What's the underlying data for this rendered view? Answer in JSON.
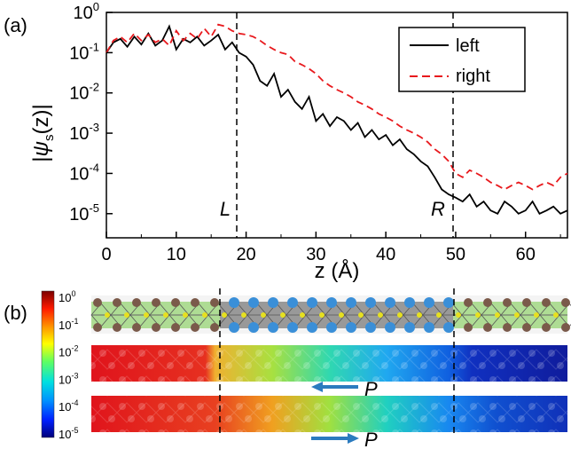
{
  "panel_a": {
    "tag": "(a)",
    "chart_data": {
      "type": "line",
      "xlabel": "z (Å)",
      "ylabel": "|ψs(z)|",
      "xlim": [
        0,
        66
      ],
      "ylim_log10": [
        -5.6,
        0
      ],
      "y_scale": "log",
      "x_ticks": [
        "0",
        "10",
        "20",
        "30",
        "40",
        "50",
        "60"
      ],
      "y_ticks": [
        "10^0",
        "10^-1",
        "10^-2",
        "10^-3",
        "10^-4",
        "10^-5"
      ],
      "legend_position": "top-right",
      "annotations": [
        {
          "text": "L",
          "x": 19
        },
        {
          "text": "R",
          "x": 50
        }
      ],
      "series": [
        {
          "name": "left",
          "style": "solid",
          "color": "#000000",
          "x": [
            0,
            1,
            2,
            3,
            4,
            5,
            6,
            7,
            8,
            9,
            10,
            11,
            12,
            13,
            14,
            15,
            16,
            17,
            18,
            19,
            20,
            21,
            22,
            23,
            24,
            25,
            26,
            27,
            28,
            29,
            30,
            31,
            32,
            33,
            34,
            35,
            36,
            37,
            38,
            39,
            40,
            41,
            42,
            43,
            44,
            45,
            46,
            47,
            48,
            49,
            50,
            51,
            52,
            53,
            54,
            55,
            56,
            57,
            58,
            59,
            60,
            61,
            62,
            63,
            64,
            65,
            66
          ],
          "y": [
            0.1,
            0.18,
            0.22,
            0.14,
            0.25,
            0.16,
            0.3,
            0.15,
            0.2,
            0.45,
            0.12,
            0.22,
            0.18,
            0.25,
            0.15,
            0.2,
            0.28,
            0.12,
            0.18,
            0.1,
            0.08,
            0.05,
            0.02,
            0.015,
            0.03,
            0.008,
            0.012,
            0.006,
            0.004,
            0.008,
            0.002,
            0.003,
            0.0015,
            0.0025,
            0.002,
            0.0012,
            0.0018,
            0.0008,
            0.0012,
            0.0007,
            0.0009,
            0.0005,
            0.0007,
            0.0004,
            0.0003,
            0.0002,
            0.00015,
            8e-05,
            4e-05,
            3e-05,
            2.5e-05,
            2e-05,
            3e-05,
            1.5e-05,
            2e-05,
            1.2e-05,
            1e-05,
            2e-05,
            1.5e-05,
            1e-05,
            1.2e-05,
            2e-05,
            1e-05,
            1.2e-05,
            1.5e-05,
            1e-05,
            1.2e-05
          ]
        },
        {
          "name": "right",
          "style": "dashed",
          "color": "#e8191d",
          "x": [
            0,
            1,
            2,
            3,
            4,
            5,
            6,
            7,
            8,
            9,
            10,
            11,
            12,
            13,
            14,
            15,
            16,
            17,
            18,
            19,
            20,
            21,
            22,
            23,
            24,
            25,
            26,
            27,
            28,
            29,
            30,
            31,
            32,
            33,
            34,
            35,
            36,
            37,
            38,
            39,
            40,
            41,
            42,
            43,
            44,
            45,
            46,
            47,
            48,
            49,
            50,
            51,
            52,
            53,
            54,
            55,
            56,
            57,
            58,
            59,
            60,
            61,
            62,
            63,
            64,
            65,
            66
          ],
          "y": [
            0.1,
            0.2,
            0.25,
            0.18,
            0.3,
            0.2,
            0.28,
            0.18,
            0.22,
            0.15,
            0.35,
            0.2,
            0.3,
            0.22,
            0.4,
            0.25,
            0.5,
            0.45,
            0.35,
            0.3,
            0.28,
            0.25,
            0.2,
            0.15,
            0.12,
            0.1,
            0.09,
            0.06,
            0.05,
            0.04,
            0.03,
            0.02,
            0.015,
            0.012,
            0.01,
            0.008,
            0.006,
            0.005,
            0.004,
            0.003,
            0.0025,
            0.002,
            0.0015,
            0.0012,
            0.001,
            0.0008,
            0.0006,
            0.0004,
            0.0003,
            0.0002,
            0.0001,
            8e-05,
            0.00012,
            0.0001,
            8e-05,
            6e-05,
            5e-05,
            4e-05,
            5e-05,
            6e-05,
            5e-05,
            4e-05,
            5e-05,
            6e-05,
            5e-05,
            8e-05,
            0.0001
          ]
        }
      ]
    }
  },
  "panel_b": {
    "tag": "(b)",
    "colorbar_ticks": [
      "10^0",
      "10^-1",
      "10^-2",
      "10^-3",
      "10^-4",
      "10^-5"
    ],
    "arrow_label_1": "P",
    "arrow_label_2": "P",
    "arrow_1_direction": "left",
    "arrow_2_direction": "right",
    "colors": {
      "high": "#e0141c",
      "mid": "#2ed67a",
      "low": "#1020b0"
    }
  }
}
